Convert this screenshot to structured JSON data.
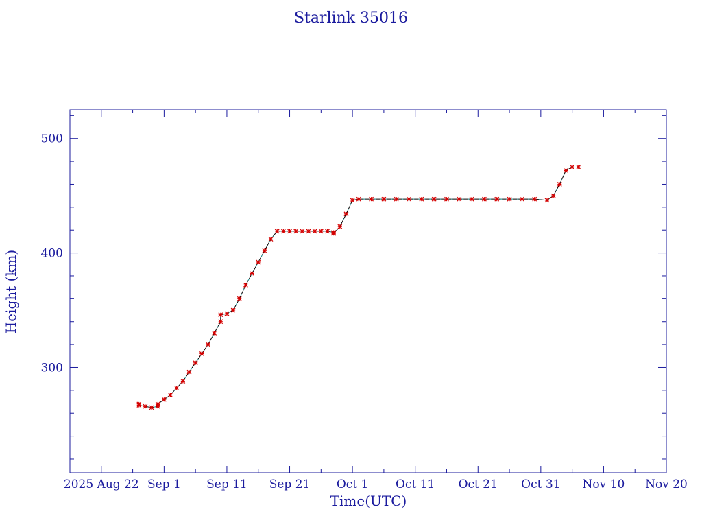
{
  "chart_data": {
    "type": "scatter",
    "title": "Starlink 35016",
    "xlabel": "Time(UTC)",
    "ylabel": "Height (km)",
    "x_ticks": [
      "2025 Aug 22",
      "Sep  1",
      "Sep 11",
      "Sep 21",
      "Oct  1",
      "Oct 11",
      "Oct 21",
      "Oct 31",
      "Nov 10",
      "Nov 20"
    ],
    "y_ticks": [
      300,
      400,
      500
    ],
    "xlim": [
      "2025-08-17",
      "2025-11-20"
    ],
    "ylim": [
      208,
      525
    ],
    "series": [
      {
        "color": "#d40000",
        "marker": "x",
        "points": [
          [
            "2025-08-28",
            268
          ],
          [
            "2025-08-28",
            267
          ],
          [
            "2025-08-29",
            266
          ],
          [
            "2025-08-30",
            265
          ],
          [
            "2025-08-31",
            266
          ],
          [
            "2025-08-31",
            268
          ],
          [
            "2025-09-01",
            272
          ],
          [
            "2025-09-02",
            276
          ],
          [
            "2025-09-03",
            282
          ],
          [
            "2025-09-04",
            288
          ],
          [
            "2025-09-05",
            296
          ],
          [
            "2025-09-06",
            304
          ],
          [
            "2025-09-07",
            312
          ],
          [
            "2025-09-08",
            320
          ],
          [
            "2025-09-09",
            330
          ],
          [
            "2025-09-10",
            340
          ],
          [
            "2025-09-10",
            346
          ],
          [
            "2025-09-11",
            347
          ],
          [
            "2025-09-12",
            350
          ],
          [
            "2025-09-13",
            360
          ],
          [
            "2025-09-14",
            372
          ],
          [
            "2025-09-15",
            382
          ],
          [
            "2025-09-16",
            392
          ],
          [
            "2025-09-17",
            402
          ],
          [
            "2025-09-18",
            412
          ],
          [
            "2025-09-19",
            419
          ],
          [
            "2025-09-20",
            419
          ],
          [
            "2025-09-21",
            419
          ],
          [
            "2025-09-22",
            419
          ],
          [
            "2025-09-23",
            419
          ],
          [
            "2025-09-24",
            419
          ],
          [
            "2025-09-25",
            419
          ],
          [
            "2025-09-26",
            419
          ],
          [
            "2025-09-27",
            419
          ],
          [
            "2025-09-28",
            418
          ],
          [
            "2025-09-28",
            417
          ],
          [
            "2025-09-29",
            423
          ],
          [
            "2025-09-30",
            434
          ],
          [
            "2025-10-01",
            446
          ],
          [
            "2025-10-02",
            447
          ],
          [
            "2025-10-04",
            447
          ],
          [
            "2025-10-06",
            447
          ],
          [
            "2025-10-08",
            447
          ],
          [
            "2025-10-10",
            447
          ],
          [
            "2025-10-12",
            447
          ],
          [
            "2025-10-14",
            447
          ],
          [
            "2025-10-16",
            447
          ],
          [
            "2025-10-18",
            447
          ],
          [
            "2025-10-20",
            447
          ],
          [
            "2025-10-22",
            447
          ],
          [
            "2025-10-24",
            447
          ],
          [
            "2025-10-26",
            447
          ],
          [
            "2025-10-28",
            447
          ],
          [
            "2025-10-30",
            447
          ],
          [
            "2025-11-01",
            446
          ],
          [
            "2025-11-02",
            450
          ],
          [
            "2025-11-03",
            460
          ],
          [
            "2025-11-04",
            472
          ],
          [
            "2025-11-05",
            475
          ],
          [
            "2025-11-06",
            475
          ]
        ]
      }
    ]
  }
}
